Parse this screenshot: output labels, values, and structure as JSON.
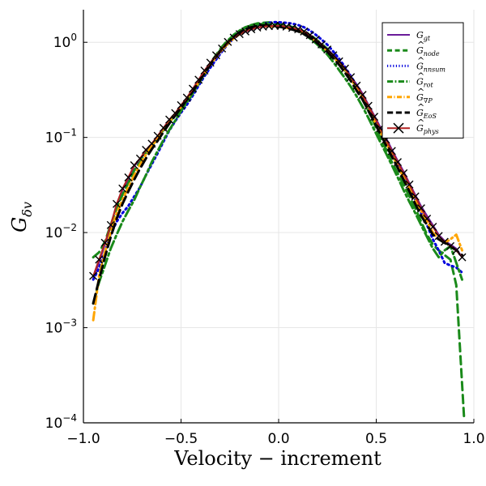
{
  "chart_data": {
    "type": "line",
    "xlabel": "Velocity − increment",
    "ylabel": "G_δv",
    "xlim": [
      -1.0,
      1.0
    ],
    "ylim": [
      0.0001,
      2.2
    ],
    "yscale": "log",
    "grid": true,
    "legend_position": "top-right",
    "x_ticks": [
      {
        "value": -1.0,
        "label": "−1.0"
      },
      {
        "value": -0.5,
        "label": "−0.5"
      },
      {
        "value": 0.0,
        "label": "0.0"
      },
      {
        "value": 0.5,
        "label": "0.5"
      },
      {
        "value": 1.0,
        "label": "1.0"
      }
    ],
    "y_ticks": [
      {
        "value": 0.0001,
        "base": "10",
        "exp": "−4"
      },
      {
        "value": 0.001,
        "base": "10",
        "exp": "−3"
      },
      {
        "value": 0.01,
        "base": "10",
        "exp": "−2"
      },
      {
        "value": 0.1,
        "base": "10",
        "exp": "−1"
      },
      {
        "value": 1,
        "base": "10",
        "exp": "0"
      }
    ],
    "series": [
      {
        "name": "G_gt",
        "legend_main": "G",
        "legend_sub": "gt",
        "legend_hat": false,
        "color": "#6a1b9a",
        "dash": "",
        "width": 2,
        "marker": "none",
        "x": [
          -0.95,
          -0.92,
          -0.89,
          -0.86,
          -0.83,
          -0.8,
          -0.77,
          -0.74,
          -0.71,
          -0.68,
          -0.65,
          -0.62,
          -0.59,
          -0.56,
          -0.53,
          -0.5,
          -0.47,
          -0.44,
          -0.41,
          -0.38,
          -0.35,
          -0.32,
          -0.29,
          -0.26,
          -0.23,
          -0.2,
          -0.17,
          -0.14,
          -0.11,
          -0.08,
          -0.05,
          -0.02,
          0.01,
          0.04,
          0.07,
          0.1,
          0.13,
          0.16,
          0.19,
          0.22,
          0.25,
          0.28,
          0.31,
          0.34,
          0.37,
          0.4,
          0.43,
          0.46,
          0.49,
          0.52,
          0.55,
          0.58,
          0.61,
          0.64,
          0.67,
          0.7,
          0.73,
          0.76,
          0.79,
          0.82,
          0.85,
          0.88,
          0.91,
          0.94
        ],
        "y": [
          0.0033,
          0.0048,
          0.0075,
          0.0115,
          0.02,
          0.028,
          0.036,
          0.05,
          0.058,
          0.072,
          0.084,
          0.102,
          0.124,
          0.152,
          0.178,
          0.215,
          0.258,
          0.32,
          0.4,
          0.5,
          0.6,
          0.72,
          0.85,
          1.0,
          1.1,
          1.2,
          1.29,
          1.36,
          1.42,
          1.45,
          1.47,
          1.48,
          1.5,
          1.47,
          1.43,
          1.38,
          1.31,
          1.2,
          1.08,
          0.96,
          0.85,
          0.74,
          0.64,
          0.54,
          0.44,
          0.36,
          0.29,
          0.22,
          0.17,
          0.13,
          0.099,
          0.075,
          0.057,
          0.044,
          0.033,
          0.025,
          0.019,
          0.015,
          0.012,
          0.0095,
          0.0082,
          0.0075,
          0.0068,
          0.0055
        ]
      },
      {
        "name": "Ĝ_node",
        "legend_main": "G",
        "legend_sub": "node",
        "legend_hat": true,
        "color": "#1a8a1a",
        "dash": "10,6",
        "width": 3,
        "marker": "none",
        "x": [
          -0.95,
          -0.92,
          -0.89,
          -0.86,
          -0.83,
          -0.8,
          -0.77,
          -0.74,
          -0.71,
          -0.68,
          -0.65,
          -0.62,
          -0.59,
          -0.56,
          -0.53,
          -0.5,
          -0.47,
          -0.44,
          -0.41,
          -0.38,
          -0.35,
          -0.32,
          -0.29,
          -0.26,
          -0.23,
          -0.2,
          -0.17,
          -0.14,
          -0.11,
          -0.08,
          -0.05,
          -0.02,
          0.01,
          0.04,
          0.07,
          0.1,
          0.13,
          0.16,
          0.19,
          0.22,
          0.25,
          0.28,
          0.31,
          0.34,
          0.37,
          0.4,
          0.43,
          0.46,
          0.49,
          0.52,
          0.55,
          0.58,
          0.61,
          0.64,
          0.67,
          0.7,
          0.73,
          0.76,
          0.79,
          0.82,
          0.85,
          0.88,
          0.91,
          0.95
        ],
        "y": [
          0.0055,
          0.0062,
          0.008,
          0.012,
          0.018,
          0.025,
          0.033,
          0.045,
          0.055,
          0.068,
          0.08,
          0.1,
          0.12,
          0.145,
          0.17,
          0.2,
          0.24,
          0.3,
          0.38,
          0.48,
          0.6,
          0.74,
          0.9,
          1.05,
          1.18,
          1.3,
          1.42,
          1.52,
          1.58,
          1.6,
          1.62,
          1.6,
          1.55,
          1.5,
          1.45,
          1.38,
          1.3,
          1.2,
          1.08,
          0.96,
          0.85,
          0.72,
          0.6,
          0.5,
          0.4,
          0.32,
          0.25,
          0.19,
          0.14,
          0.1,
          0.075,
          0.055,
          0.042,
          0.032,
          0.024,
          0.018,
          0.013,
          0.0095,
          0.0075,
          0.0065,
          0.0058,
          0.0052,
          0.0028,
          0.00011
        ]
      },
      {
        "name": "Ĝ_nnsum",
        "legend_main": "G",
        "legend_sub": "nnsum",
        "legend_hat": true,
        "color": "#0000dd",
        "dash": "2,4",
        "width": 3,
        "marker": "none",
        "x": [
          -0.95,
          -0.92,
          -0.89,
          -0.86,
          -0.83,
          -0.8,
          -0.77,
          -0.74,
          -0.71,
          -0.68,
          -0.65,
          -0.62,
          -0.59,
          -0.56,
          -0.53,
          -0.5,
          -0.47,
          -0.44,
          -0.41,
          -0.38,
          -0.35,
          -0.32,
          -0.29,
          -0.26,
          -0.23,
          -0.2,
          -0.17,
          -0.14,
          -0.11,
          -0.08,
          -0.05,
          -0.02,
          0.01,
          0.04,
          0.07,
          0.1,
          0.13,
          0.16,
          0.19,
          0.22,
          0.25,
          0.28,
          0.31,
          0.34,
          0.37,
          0.4,
          0.43,
          0.46,
          0.49,
          0.52,
          0.55,
          0.58,
          0.61,
          0.64,
          0.67,
          0.7,
          0.73,
          0.76,
          0.79,
          0.82,
          0.85,
          0.88,
          0.91,
          0.94
        ],
        "y": [
          0.0032,
          0.0042,
          0.0062,
          0.0095,
          0.013,
          0.016,
          0.019,
          0.024,
          0.03,
          0.04,
          0.052,
          0.068,
          0.09,
          0.118,
          0.148,
          0.182,
          0.22,
          0.275,
          0.35,
          0.44,
          0.54,
          0.66,
          0.8,
          0.96,
          1.1,
          1.24,
          1.36,
          1.45,
          1.52,
          1.56,
          1.6,
          1.63,
          1.62,
          1.6,
          1.57,
          1.52,
          1.44,
          1.33,
          1.2,
          1.07,
          0.94,
          0.8,
          0.67,
          0.55,
          0.44,
          0.35,
          0.27,
          0.21,
          0.16,
          0.12,
          0.09,
          0.068,
          0.052,
          0.04,
          0.03,
          0.022,
          0.016,
          0.012,
          0.0085,
          0.0065,
          0.0048,
          0.0045,
          0.0043,
          0.0038
        ]
      },
      {
        "name": "Ĝ_rot",
        "legend_main": "G",
        "legend_sub": "rot",
        "legend_hat": true,
        "color": "#1a8a1a",
        "dash": "12,4,3,4",
        "width": 3,
        "marker": "none",
        "x": [
          -0.95,
          -0.92,
          -0.89,
          -0.86,
          -0.83,
          -0.8,
          -0.77,
          -0.74,
          -0.71,
          -0.68,
          -0.65,
          -0.62,
          -0.59,
          -0.56,
          -0.53,
          -0.5,
          -0.47,
          -0.44,
          -0.41,
          -0.38,
          -0.35,
          -0.32,
          -0.29,
          -0.26,
          -0.23,
          -0.2,
          -0.17,
          -0.14,
          -0.11,
          -0.08,
          -0.05,
          -0.02,
          0.01,
          0.04,
          0.07,
          0.1,
          0.13,
          0.16,
          0.19,
          0.22,
          0.25,
          0.28,
          0.31,
          0.34,
          0.37,
          0.4,
          0.43,
          0.46,
          0.49,
          0.52,
          0.55,
          0.58,
          0.61,
          0.64,
          0.67,
          0.7,
          0.73,
          0.76,
          0.79,
          0.82,
          0.85,
          0.88,
          0.91,
          0.94
        ],
        "y": [
          0.0018,
          0.003,
          0.0045,
          0.0068,
          0.0095,
          0.013,
          0.017,
          0.022,
          0.03,
          0.04,
          0.055,
          0.072,
          0.094,
          0.12,
          0.15,
          0.19,
          0.235,
          0.29,
          0.37,
          0.46,
          0.58,
          0.72,
          0.88,
          1.04,
          1.2,
          1.33,
          1.44,
          1.5,
          1.54,
          1.56,
          1.55,
          1.53,
          1.5,
          1.46,
          1.4,
          1.32,
          1.22,
          1.1,
          0.98,
          0.86,
          0.74,
          0.62,
          0.51,
          0.42,
          0.34,
          0.27,
          0.21,
          0.16,
          0.12,
          0.09,
          0.068,
          0.051,
          0.038,
          0.028,
          0.021,
          0.016,
          0.012,
          0.009,
          0.0068,
          0.0055,
          0.0065,
          0.0072,
          0.0048,
          0.0032
        ]
      },
      {
        "name": "Ĝ_∇P",
        "legend_main": "G",
        "legend_sub": "∇P",
        "legend_hat": true,
        "color": "#ffa500",
        "dash": "10,4,2,4",
        "width": 3,
        "marker": "none",
        "x": [
          -0.95,
          -0.92,
          -0.89,
          -0.86,
          -0.83,
          -0.8,
          -0.77,
          -0.74,
          -0.71,
          -0.68,
          -0.65,
          -0.62,
          -0.59,
          -0.56,
          -0.53,
          -0.5,
          -0.47,
          -0.44,
          -0.41,
          -0.38,
          -0.35,
          -0.32,
          -0.29,
          -0.26,
          -0.23,
          -0.2,
          -0.17,
          -0.14,
          -0.11,
          -0.08,
          -0.05,
          -0.02,
          0.01,
          0.04,
          0.07,
          0.1,
          0.13,
          0.16,
          0.19,
          0.22,
          0.25,
          0.28,
          0.31,
          0.34,
          0.37,
          0.4,
          0.43,
          0.46,
          0.49,
          0.52,
          0.55,
          0.58,
          0.61,
          0.64,
          0.67,
          0.7,
          0.73,
          0.76,
          0.79,
          0.82,
          0.85,
          0.88,
          0.91,
          0.94
        ],
        "y": [
          0.0012,
          0.0035,
          0.0062,
          0.01,
          0.016,
          0.022,
          0.03,
          0.04,
          0.052,
          0.066,
          0.08,
          0.098,
          0.12,
          0.145,
          0.175,
          0.21,
          0.255,
          0.31,
          0.38,
          0.47,
          0.58,
          0.7,
          0.83,
          0.97,
          1.1,
          1.22,
          1.32,
          1.39,
          1.44,
          1.47,
          1.48,
          1.47,
          1.45,
          1.42,
          1.38,
          1.32,
          1.25,
          1.15,
          1.03,
          0.92,
          0.81,
          0.7,
          0.6,
          0.5,
          0.41,
          0.33,
          0.26,
          0.2,
          0.15,
          0.115,
          0.088,
          0.067,
          0.05,
          0.038,
          0.029,
          0.022,
          0.017,
          0.013,
          0.01,
          0.0085,
          0.0078,
          0.0085,
          0.0095,
          0.0065
        ]
      },
      {
        "name": "Ĝ_EoS",
        "legend_main": "G",
        "legend_sub": "EoS",
        "legend_hat": true,
        "color": "#000000",
        "dash": "12,6",
        "width": 3,
        "marker": "none",
        "x": [
          -0.95,
          -0.92,
          -0.89,
          -0.86,
          -0.83,
          -0.8,
          -0.77,
          -0.74,
          -0.71,
          -0.68,
          -0.65,
          -0.62,
          -0.59,
          -0.56,
          -0.53,
          -0.5,
          -0.47,
          -0.44,
          -0.41,
          -0.38,
          -0.35,
          -0.32,
          -0.29,
          -0.26,
          -0.23,
          -0.2,
          -0.17,
          -0.14,
          -0.11,
          -0.08,
          -0.05,
          -0.02,
          0.01,
          0.04,
          0.07,
          0.1,
          0.13,
          0.16,
          0.19,
          0.22,
          0.25,
          0.28,
          0.31,
          0.34,
          0.37,
          0.4,
          0.43,
          0.46,
          0.49,
          0.52,
          0.55,
          0.58,
          0.61,
          0.64,
          0.67,
          0.7,
          0.73,
          0.76,
          0.79,
          0.82,
          0.85,
          0.88,
          0.91,
          0.94
        ],
        "y": [
          0.0018,
          0.0032,
          0.0055,
          0.009,
          0.014,
          0.02,
          0.027,
          0.036,
          0.047,
          0.06,
          0.075,
          0.092,
          0.114,
          0.14,
          0.17,
          0.205,
          0.25,
          0.305,
          0.38,
          0.47,
          0.58,
          0.71,
          0.85,
          1.0,
          1.14,
          1.27,
          1.37,
          1.44,
          1.48,
          1.5,
          1.5,
          1.48,
          1.45,
          1.41,
          1.36,
          1.3,
          1.22,
          1.12,
          1.01,
          0.9,
          0.79,
          0.68,
          0.58,
          0.48,
          0.39,
          0.31,
          0.25,
          0.19,
          0.145,
          0.11,
          0.083,
          0.063,
          0.048,
          0.036,
          0.027,
          0.02,
          0.015,
          0.012,
          0.0095,
          0.0085,
          0.0078,
          0.0072,
          0.0065,
          0.0058
        ]
      },
      {
        "name": "Ĝ_phys",
        "legend_main": "G",
        "legend_sub": "phys",
        "legend_hat": true,
        "color": "#b22222",
        "dash": "",
        "width": 2,
        "marker": "x",
        "marker_color": "#000000",
        "x": [
          -0.95,
          -0.92,
          -0.89,
          -0.86,
          -0.83,
          -0.8,
          -0.77,
          -0.74,
          -0.71,
          -0.68,
          -0.65,
          -0.62,
          -0.59,
          -0.56,
          -0.53,
          -0.5,
          -0.47,
          -0.44,
          -0.41,
          -0.38,
          -0.35,
          -0.32,
          -0.29,
          -0.26,
          -0.23,
          -0.2,
          -0.17,
          -0.14,
          -0.11,
          -0.08,
          -0.05,
          -0.02,
          0.01,
          0.04,
          0.07,
          0.1,
          0.13,
          0.16,
          0.19,
          0.22,
          0.25,
          0.28,
          0.31,
          0.34,
          0.37,
          0.4,
          0.43,
          0.46,
          0.49,
          0.52,
          0.55,
          0.58,
          0.61,
          0.64,
          0.67,
          0.7,
          0.73,
          0.76,
          0.79,
          0.82,
          0.85,
          0.88,
          0.91,
          0.94
        ],
        "y": [
          0.0035,
          0.0052,
          0.0078,
          0.012,
          0.02,
          0.029,
          0.038,
          0.051,
          0.06,
          0.074,
          0.086,
          0.104,
          0.126,
          0.154,
          0.18,
          0.218,
          0.262,
          0.325,
          0.405,
          0.505,
          0.61,
          0.73,
          0.86,
          1.01,
          1.12,
          1.22,
          1.3,
          1.37,
          1.43,
          1.46,
          1.48,
          1.49,
          1.49,
          1.46,
          1.42,
          1.37,
          1.3,
          1.19,
          1.07,
          0.95,
          0.84,
          0.73,
          0.63,
          0.53,
          0.43,
          0.35,
          0.28,
          0.215,
          0.165,
          0.125,
          0.095,
          0.072,
          0.055,
          0.042,
          0.032,
          0.024,
          0.018,
          0.014,
          0.0115,
          0.0092,
          0.008,
          0.0072,
          0.0065,
          0.0055
        ]
      }
    ]
  }
}
